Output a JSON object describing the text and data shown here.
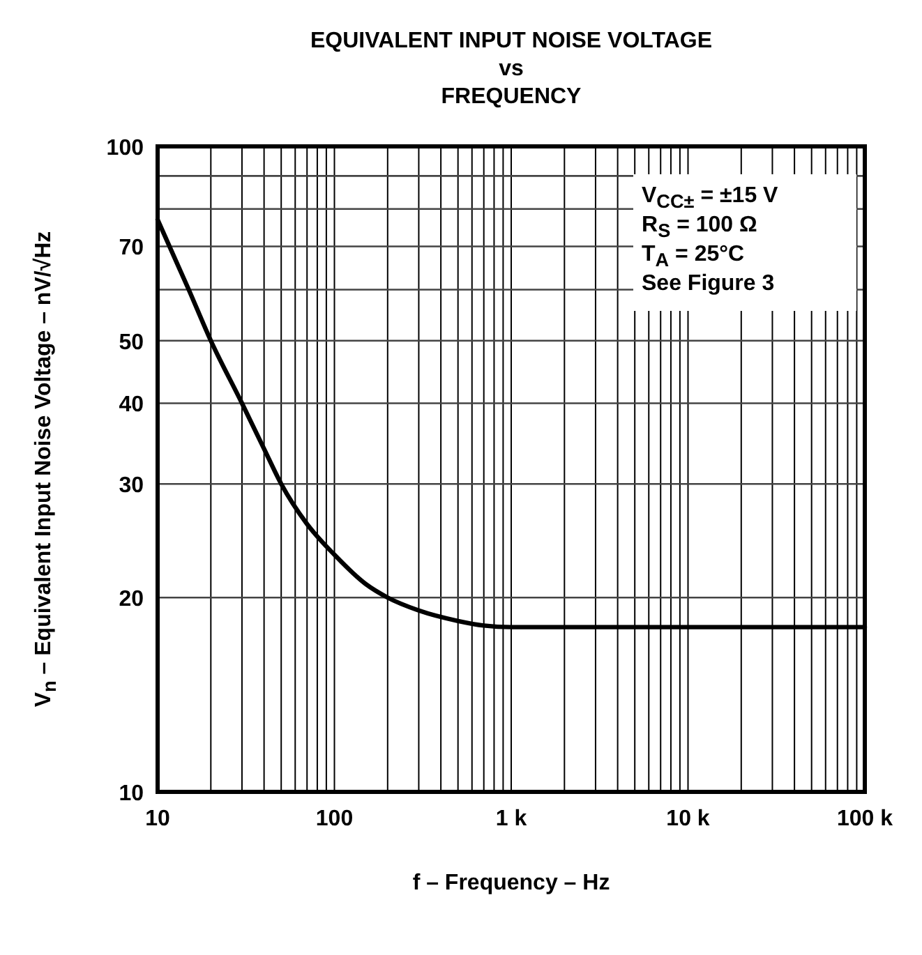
{
  "chart_data": {
    "type": "line",
    "title": "EQUIVALENT INPUT NOISE VOLTAGE\nvs\nFREQUENCY",
    "xlabel": "f – Frequency – Hz",
    "ylabel": "V$_{n}$ – Equivalent Input Noise Voltage – nV/√Hz",
    "x": [
      10,
      15,
      20,
      30,
      40,
      50,
      70,
      100,
      150,
      200,
      300,
      500,
      700,
      1000,
      2000,
      10000,
      100000
    ],
    "series": [
      {
        "color": "#000000",
        "values": [
          77,
          60,
          50,
          40,
          34,
          30,
          26,
          23.3,
          21,
          20,
          19.1,
          18.4,
          18.1,
          18,
          18,
          18,
          18
        ]
      }
    ],
    "log": "xy",
    "xlim": [
      10,
      100000
    ],
    "ylim": [
      10,
      100
    ],
    "xticks": [
      10,
      {
        "value": 20,
        "label": null
      },
      {
        "value": 30,
        "label": null
      },
      {
        "value": 40,
        "label": null
      },
      {
        "value": 50,
        "label": null
      },
      {
        "value": 60,
        "label": null
      },
      {
        "value": 70,
        "label": null
      },
      {
        "value": 80,
        "label": null
      },
      {
        "value": 90,
        "label": null
      },
      100,
      {
        "value": 200,
        "label": null
      },
      {
        "value": 300,
        "label": null
      },
      {
        "value": 400,
        "label": null
      },
      {
        "value": 500,
        "label": null
      },
      {
        "value": 600,
        "label": null
      },
      {
        "value": 700,
        "label": null
      },
      {
        "value": 800,
        "label": null
      },
      {
        "value": 900,
        "label": null
      },
      {
        "value": 1000,
        "label": "1 k"
      },
      {
        "value": 2000,
        "label": null
      },
      {
        "value": 3000,
        "label": null
      },
      {
        "value": 4000,
        "label": null
      },
      {
        "value": 5000,
        "label": null
      },
      {
        "value": 6000,
        "label": null
      },
      {
        "value": 7000,
        "label": null
      },
      {
        "value": 8000,
        "label": null
      },
      {
        "value": 9000,
        "label": null
      },
      {
        "value": 10000,
        "label": "10 k"
      },
      {
        "value": 20000,
        "label": null
      },
      {
        "value": 30000,
        "label": null
      },
      {
        "value": 40000,
        "label": null
      },
      {
        "value": 50000,
        "label": null
      },
      {
        "value": 60000,
        "label": null
      },
      {
        "value": 70000,
        "label": null
      },
      {
        "value": 80000,
        "label": null
      },
      {
        "value": 90000,
        "label": null
      },
      {
        "value": 100000,
        "label": "100 k"
      }
    ],
    "yticks": [
      10,
      20,
      30,
      40,
      50,
      {
        "value": 60,
        "label": null
      },
      70,
      {
        "value": 80,
        "label": null
      },
      {
        "value": 90,
        "label": null
      },
      100
    ],
    "grid": true,
    "annotations": [
      "V$_{CC±}$ = ±15 V",
      "R$_{S}$ = 100 Ω",
      "T$_{A}$ = 25°C",
      "See Figure 3"
    ]
  }
}
